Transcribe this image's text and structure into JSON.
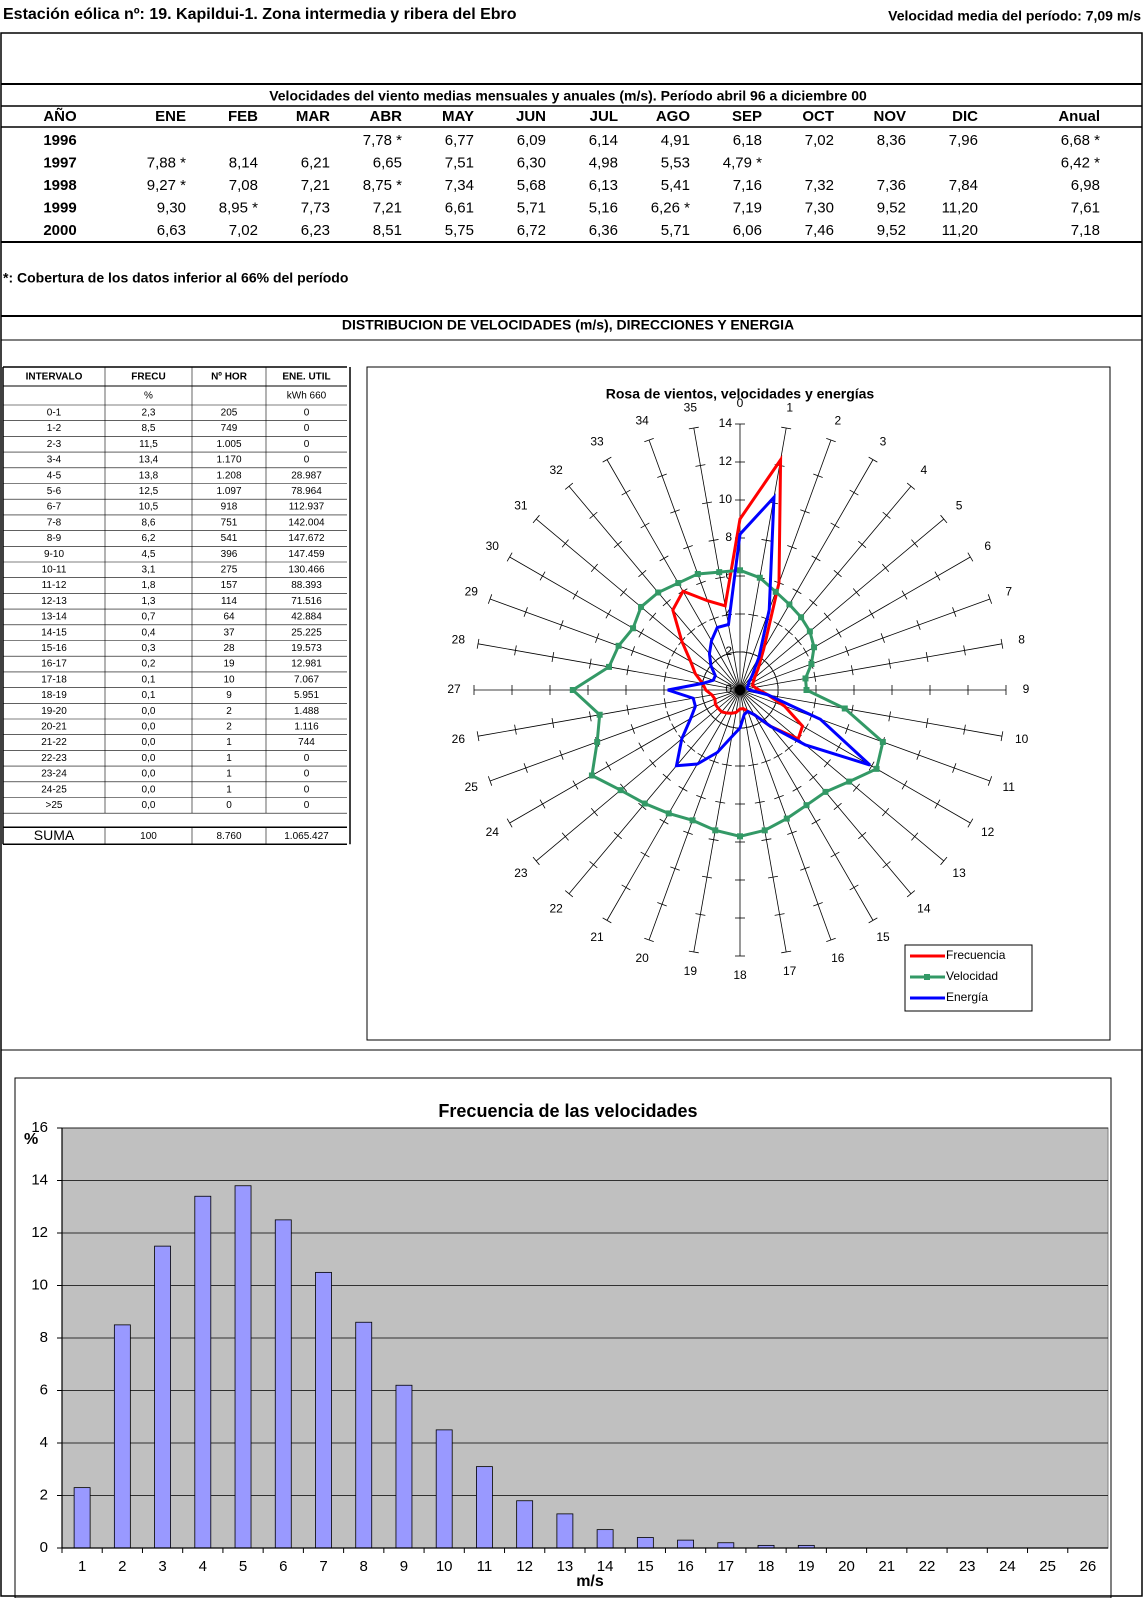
{
  "header": {
    "title": "Estación eólica nº: 19. Kapildui-1. Zona intermedia y ribera del Ebro",
    "mean_speed": "Velocidad media del período: 7,09 m/s"
  },
  "monthly_table": {
    "title": "Velocidades del viento medias mensuales y anuales (m/s). Período abril 96 a diciembre 00",
    "columns": [
      "AÑO",
      "ENE",
      "FEB",
      "MAR",
      "ABR",
      "MAY",
      "JUN",
      "JUL",
      "AGO",
      "SEP",
      "OCT",
      "NOV",
      "DIC",
      "Anual"
    ],
    "rows": [
      [
        "1996",
        null,
        null,
        null,
        "7,78 *",
        "6,77",
        "6,09",
        "6,14",
        "4,91",
        "6,18",
        "7,02",
        "8,36",
        "7,96",
        "6,68 *"
      ],
      [
        "1997",
        "7,88 *",
        "8,14",
        "6,21",
        "6,65",
        "7,51",
        "6,30",
        "4,98",
        "5,53",
        "4,79 *",
        null,
        null,
        null,
        "6,42 *"
      ],
      [
        "1998",
        "9,27 *",
        "7,08",
        "7,21",
        "8,75 *",
        "7,34",
        "5,68",
        "6,13",
        "5,41",
        "7,16",
        "7,32",
        "7,36",
        "7,84",
        "6,98"
      ],
      [
        "1999",
        "9,30",
        "8,95 *",
        "7,73",
        "7,21",
        "6,61",
        "5,71",
        "5,16",
        "6,26 *",
        "7,19",
        "7,30",
        "9,52",
        "11,20",
        "7,61"
      ],
      [
        "2000",
        "6,63",
        "7,02",
        "6,23",
        "8,51",
        "5,75",
        "6,72",
        "6,36",
        "5,71",
        "6,06",
        "7,46",
        "9,52",
        "11,20",
        "7,18"
      ]
    ]
  },
  "note": "*: Cobertura de los datos inferior al 66% del período",
  "distribution_title": "DISTRIBUCION DE VELOCIDADES (m/s), DIRECCIONES Y ENERGIA",
  "distribution_table": {
    "columns": [
      "INTERVALO",
      "FRECU",
      "Nº HOR",
      "ENE. UTIL"
    ],
    "units": [
      null,
      "%",
      null,
      "kWh 660"
    ],
    "rows": [
      [
        "0-1",
        "2,3",
        "205",
        "0"
      ],
      [
        "1-2",
        "8,5",
        "749",
        "0"
      ],
      [
        "2-3",
        "11,5",
        "1.005",
        "0"
      ],
      [
        "3-4",
        "13,4",
        "1.170",
        "0"
      ],
      [
        "4-5",
        "13,8",
        "1.208",
        "28.987"
      ],
      [
        "5-6",
        "12,5",
        "1.097",
        "78.964"
      ],
      [
        "6-7",
        "10,5",
        "918",
        "112.937"
      ],
      [
        "7-8",
        "8,6",
        "751",
        "142.004"
      ],
      [
        "8-9",
        "6,2",
        "541",
        "147.672"
      ],
      [
        "9-10",
        "4,5",
        "396",
        "147.459"
      ],
      [
        "10-11",
        "3,1",
        "275",
        "130.466"
      ],
      [
        "11-12",
        "1,8",
        "157",
        "88.393"
      ],
      [
        "12-13",
        "1,3",
        "114",
        "71.516"
      ],
      [
        "13-14",
        "0,7",
        "64",
        "42.884"
      ],
      [
        "14-15",
        "0,4",
        "37",
        "25.225"
      ],
      [
        "15-16",
        "0,3",
        "28",
        "19.573"
      ],
      [
        "16-17",
        "0,2",
        "19",
        "12.981"
      ],
      [
        "17-18",
        "0,1",
        "10",
        "7.067"
      ],
      [
        "18-19",
        "0,1",
        "9",
        "5.951"
      ],
      [
        "19-20",
        "0,0",
        "2",
        "1.488"
      ],
      [
        "20-21",
        "0,0",
        "2",
        "1.116"
      ],
      [
        "21-22",
        "0,0",
        "1",
        "744"
      ],
      [
        "22-23",
        "0,0",
        "1",
        "0"
      ],
      [
        "23-24",
        "0,0",
        "1",
        "0"
      ],
      [
        "24-25",
        "0,0",
        "1",
        "0"
      ],
      [
        ">25",
        "0,0",
        "0",
        "0"
      ]
    ],
    "total": [
      "SUMA",
      "100",
      "8.760",
      "1.065.427"
    ]
  },
  "chart_data": [
    {
      "type": "radar",
      "title": "Rosa de vientos, velocidades y energías",
      "categories": [
        "0",
        "1",
        "2",
        "3",
        "4",
        "5",
        "6",
        "7",
        "8",
        "9",
        "10",
        "11",
        "12",
        "13",
        "14",
        "15",
        "16",
        "17",
        "18",
        "19",
        "20",
        "21",
        "22",
        "23",
        "24",
        "25",
        "26",
        "27",
        "28",
        "29",
        "30",
        "31",
        "32",
        "33",
        "34",
        "35"
      ],
      "ylim": [
        0,
        14
      ],
      "yticks": [
        0,
        2,
        4,
        6,
        8,
        10,
        12,
        14
      ],
      "legend": "bottom-right",
      "series": [
        {
          "name": "Frecuencia",
          "color": "#ff0000",
          "values": [
            9.0,
            12.3,
            6.0,
            2.5,
            1.5,
            1.0,
            0.8,
            0.7,
            0.8,
            1.0,
            1.5,
            2.5,
            3.8,
            4.0,
            2.5,
            1.5,
            1.2,
            1.0,
            1.0,
            1.2,
            1.3,
            1.4,
            1.5,
            1.5,
            1.5,
            1.4,
            1.5,
            1.8,
            2.0,
            2.5,
            3.0,
            4.0,
            5.5,
            6.0,
            5.0,
            4.5
          ]
        },
        {
          "name": "Velocidad",
          "color": "#339966",
          "marker": "square",
          "values": [
            6.3,
            6.0,
            5.5,
            5.2,
            5.0,
            4.8,
            4.5,
            4.0,
            3.5,
            3.5,
            5.6,
            8.0,
            8.3,
            7.5,
            7.0,
            7.0,
            7.2,
            7.5,
            7.7,
            7.5,
            7.3,
            7.5,
            7.8,
            8.2,
            9.0,
            8.0,
            7.5,
            8.8,
            7.0,
            6.8,
            6.5,
            6.8,
            6.7,
            6.5,
            6.5,
            6.3
          ]
        },
        {
          "name": "Energía",
          "color": "#0000ff",
          "values": [
            8.2,
            10.3,
            4.5,
            2.0,
            1.0,
            0.6,
            0.5,
            0.4,
            0.4,
            0.5,
            1.5,
            4.5,
            7.9,
            4.5,
            2.5,
            1.5,
            1.2,
            1.3,
            2.0,
            2.5,
            3.5,
            4.5,
            5.2,
            4.0,
            3.0,
            2.5,
            2.5,
            3.8,
            2.0,
            1.5,
            1.5,
            2.0,
            2.5,
            3.0,
            3.5,
            3.5
          ]
        }
      ]
    },
    {
      "type": "bar",
      "title": "Frecuencia de las velocidades",
      "x_label": "m/s",
      "y_label": "%",
      "categories": [
        "1",
        "2",
        "3",
        "4",
        "5",
        "6",
        "7",
        "8",
        "9",
        "10",
        "11",
        "12",
        "13",
        "14",
        "15",
        "16",
        "17",
        "18",
        "19",
        "20",
        "21",
        "22",
        "23",
        "24",
        "25",
        "26"
      ],
      "values": [
        2.3,
        8.5,
        11.5,
        13.4,
        13.8,
        12.5,
        10.5,
        8.6,
        6.2,
        4.5,
        3.1,
        1.8,
        1.3,
        0.7,
        0.4,
        0.3,
        0.2,
        0.1,
        0.1,
        0,
        0,
        0,
        0,
        0,
        0,
        0
      ],
      "color": "#9999ff",
      "ylim": [
        0,
        16
      ],
      "yticks": [
        0,
        2,
        4,
        6,
        8,
        10,
        12,
        14,
        16
      ],
      "grid": true
    }
  ]
}
